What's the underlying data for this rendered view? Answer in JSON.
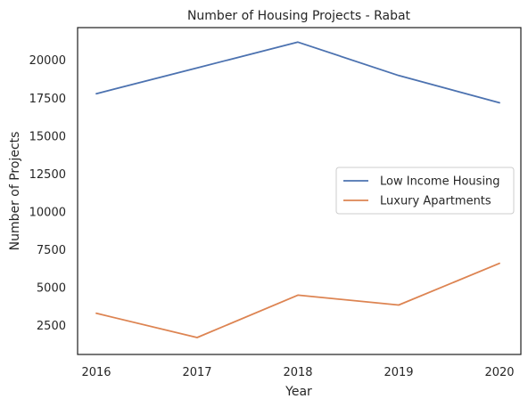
{
  "chart_data": {
    "type": "line",
    "title": "Number of Housing Projects - Rabat",
    "xlabel": "Year",
    "ylabel": "Number of Projects",
    "x": [
      2016,
      2017,
      2018,
      2019,
      2020
    ],
    "x_tick_labels": [
      "2016",
      "2017",
      "2018",
      "2019",
      "2020"
    ],
    "y_ticks": [
      2500,
      5000,
      7500,
      10000,
      12500,
      15000,
      17500,
      20000
    ],
    "y_tick_labels": [
      "2500",
      "5000",
      "7500",
      "10000",
      "12500",
      "15000",
      "17500",
      "20000"
    ],
    "ylim": [
      585,
      22160
    ],
    "grid": false,
    "legend_position": "center-right",
    "series": [
      {
        "name": "Low Income Housing",
        "color": "#4c72b0",
        "values": [
          17800,
          19500,
          21200,
          19000,
          17200
        ]
      },
      {
        "name": "Luxury Apartments",
        "color": "#dd8452",
        "values": [
          3300,
          1700,
          4500,
          3850,
          6600
        ]
      }
    ]
  }
}
